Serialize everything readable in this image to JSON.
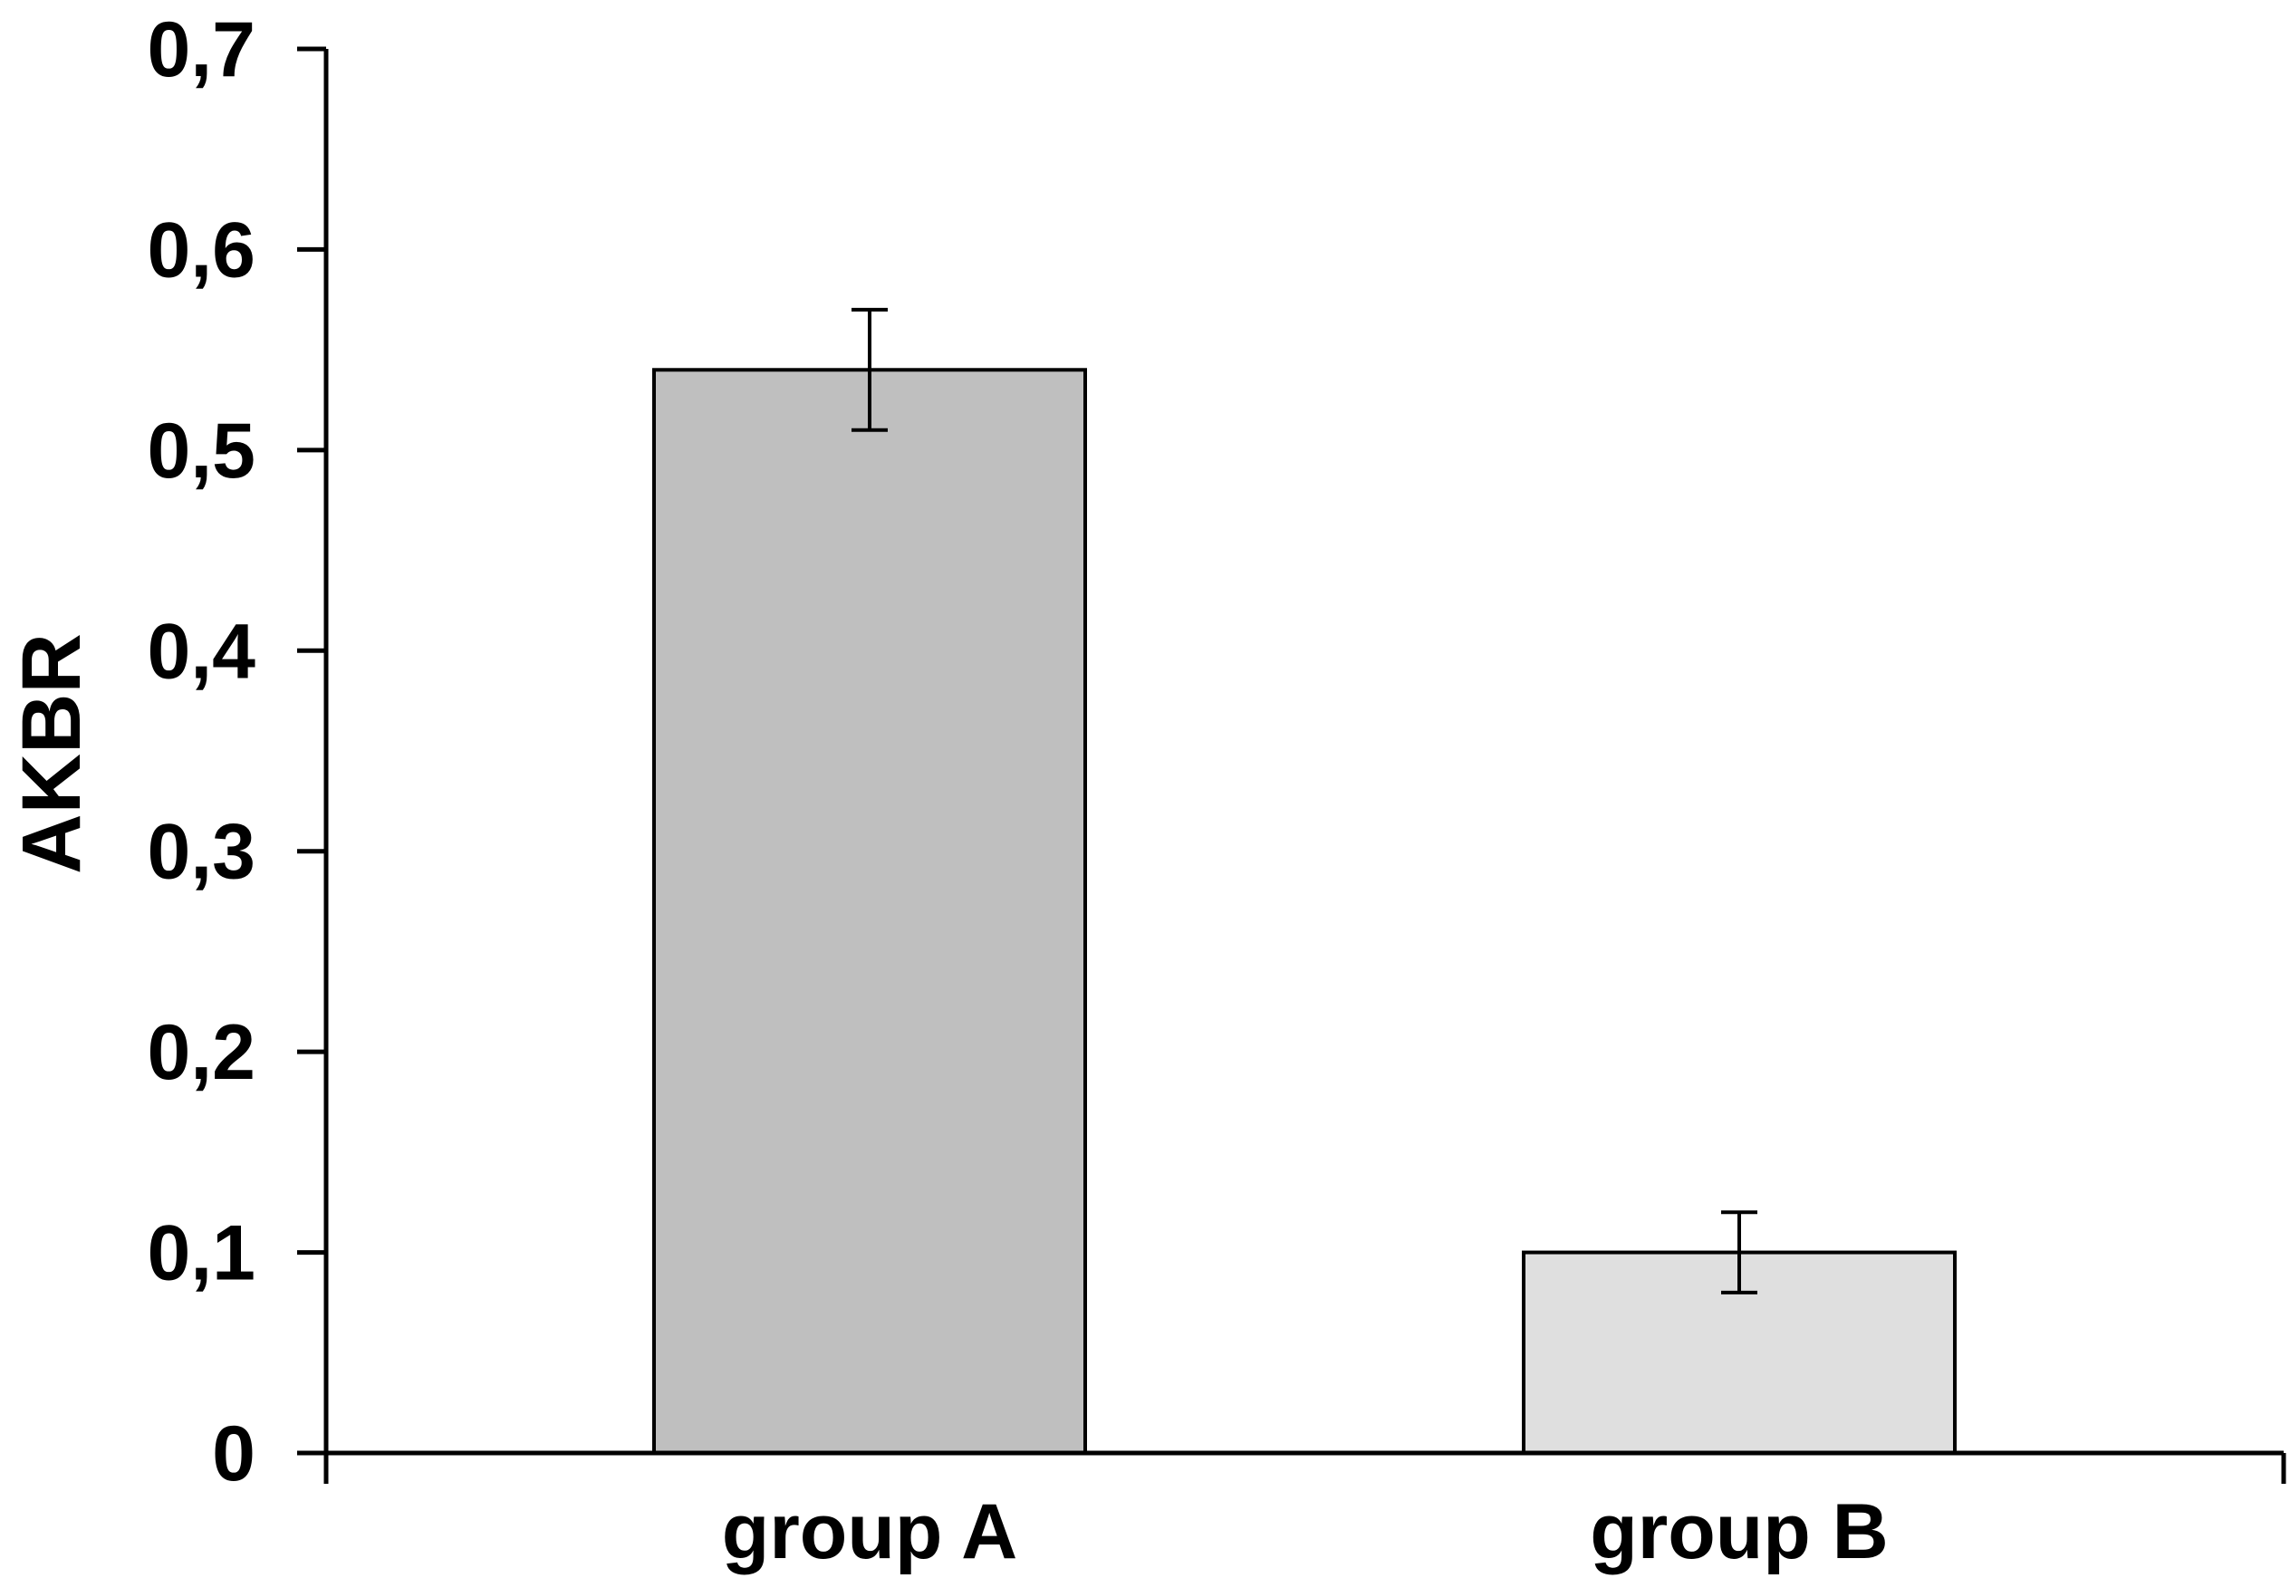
{
  "chart_data": {
    "type": "bar",
    "title": "",
    "xlabel": "",
    "ylabel": "AKBR",
    "categories": [
      "group A",
      "group B"
    ],
    "values": [
      0.54,
      0.1
    ],
    "error": [
      0.03,
      0.02
    ],
    "bar_colors": [
      "#bfbfbf",
      "#dfdfdf"
    ],
    "ylim": [
      0,
      0.7
    ],
    "yticks": [
      0,
      0.1,
      0.2,
      0.3,
      0.4,
      0.5,
      0.6,
      0.7
    ],
    "ytick_labels": [
      "0",
      "0,1",
      "0,2",
      "0,3",
      "0,4",
      "0,5",
      "0,6",
      "0,7"
    ],
    "grid": false,
    "legend": "none"
  }
}
